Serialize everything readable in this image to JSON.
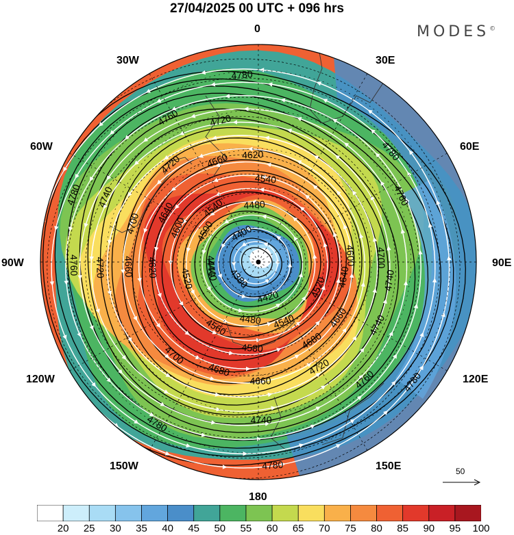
{
  "header": {
    "title": "27/04/2025  00 UTC  + 096 hrs",
    "brand": "MODES",
    "brand_mark": "©"
  },
  "map": {
    "projection": "north-polar-stereographic",
    "longitude_labels": [
      "0",
      "30E",
      "60E",
      "90E",
      "120E",
      "150E",
      "180",
      "150W",
      "120W",
      "90W",
      "60W",
      "30W"
    ],
    "wind_speed_colorscale": {
      "colors": [
        "#ffffff",
        "#cdeefb",
        "#a9dcf5",
        "#86c3ec",
        "#62a6dd",
        "#4a8ec9",
        "#41a598",
        "#4cb562",
        "#7dc452",
        "#c4d94e",
        "#f9de5e",
        "#f9b04a",
        "#f58a3f",
        "#ef6133",
        "#e2392b",
        "#c92026",
        "#a8171f"
      ],
      "ticks": [
        "20",
        "25",
        "30",
        "35",
        "40",
        "45",
        "50",
        "55",
        "60",
        "65",
        "70",
        "75",
        "80",
        "85",
        "90",
        "95",
        "100"
      ]
    },
    "geopotential_contours": {
      "levels": [
        "4380",
        "4400",
        "4420",
        "4440",
        "4480",
        "4500",
        "4520",
        "4540",
        "4560",
        "4580",
        "4600",
        "4620",
        "4640",
        "4660",
        "4680",
        "4700",
        "4720",
        "4740",
        "4760",
        "4780"
      ],
      "labels": [
        {
          "text": "4780",
          "lon": -5,
          "ring": 0.86
        },
        {
          "text": "4760",
          "lon": -32,
          "ring": 0.78
        },
        {
          "text": "4720",
          "lon": -15,
          "ring": 0.67
        },
        {
          "text": "4720",
          "lon": -42,
          "ring": 0.6
        },
        {
          "text": "4660",
          "lon": -22,
          "ring": 0.5
        },
        {
          "text": "4620",
          "lon": -3,
          "ring": 0.49
        },
        {
          "text": "4540",
          "lon": 5,
          "ring": 0.38
        },
        {
          "text": "4540",
          "lon": -40,
          "ring": 0.32
        },
        {
          "text": "4480",
          "lon": -4,
          "ring": 0.26
        },
        {
          "text": "4400",
          "lon": -30,
          "ring": 0.15
        },
        {
          "text": "4380",
          "lon": -130,
          "ring": 0.12
        },
        {
          "text": "4440",
          "lon": -95,
          "ring": 0.22
        },
        {
          "text": "4500",
          "lon": -60,
          "ring": 0.28
        },
        {
          "text": "4600",
          "lon": -67,
          "ring": 0.4
        },
        {
          "text": "4640",
          "lon": -62,
          "ring": 0.48
        },
        {
          "text": "4700",
          "lon": -73,
          "ring": 0.6
        },
        {
          "text": "4740",
          "lon": -67,
          "ring": 0.76
        },
        {
          "text": "4780",
          "lon": -70,
          "ring": 0.9
        },
        {
          "text": "4760",
          "lon": -91,
          "ring": 0.85
        },
        {
          "text": "4720",
          "lon": -92,
          "ring": 0.73
        },
        {
          "text": "4660",
          "lon": -92,
          "ring": 0.6
        },
        {
          "text": "4620",
          "lon": -93,
          "ring": 0.49
        },
        {
          "text": "4520",
          "lon": -103,
          "ring": 0.34
        },
        {
          "text": "4440",
          "lon": -100,
          "ring": 0.22
        },
        {
          "text": "4780",
          "lon": 50,
          "ring": 0.79
        },
        {
          "text": "4780",
          "lon": 128,
          "ring": 0.9
        },
        {
          "text": "4760",
          "lon": 138,
          "ring": 0.73
        },
        {
          "text": "4740",
          "lon": 98,
          "ring": 0.61
        },
        {
          "text": "4700",
          "lon": 88,
          "ring": 0.56
        },
        {
          "text": "4740",
          "lon": 118,
          "ring": 0.62
        },
        {
          "text": "4720",
          "lon": 150,
          "ring": 0.56
        },
        {
          "text": "4680",
          "lon": 146,
          "ring": 0.44
        },
        {
          "text": "4660",
          "lon": 125,
          "ring": 0.45
        },
        {
          "text": "4640",
          "lon": 100,
          "ring": 0.4
        },
        {
          "text": "4600",
          "lon": 86,
          "ring": 0.42
        },
        {
          "text": "4760",
          "lon": 65,
          "ring": 0.72
        },
        {
          "text": "4520",
          "lon": 113,
          "ring": 0.3
        },
        {
          "text": "4540",
          "lon": 157,
          "ring": 0.3
        },
        {
          "text": "4420",
          "lon": 165,
          "ring": 0.17
        },
        {
          "text": "4480",
          "lon": -172,
          "ring": 0.27
        },
        {
          "text": "4580",
          "lon": -176,
          "ring": 0.4
        },
        {
          "text": "4660",
          "lon": 179,
          "ring": 0.55
        },
        {
          "text": "4560",
          "lon": -147,
          "ring": 0.36
        },
        {
          "text": "4680",
          "lon": -160,
          "ring": 0.53
        },
        {
          "text": "4700",
          "lon": -138,
          "ring": 0.58
        },
        {
          "text": "4740",
          "lon": 179,
          "ring": 0.73
        },
        {
          "text": "4780",
          "lon": -148,
          "ring": 0.88
        },
        {
          "text": "4780",
          "lon": 176,
          "ring": 0.94
        }
      ]
    },
    "vector_reference": {
      "value": "50"
    }
  }
}
